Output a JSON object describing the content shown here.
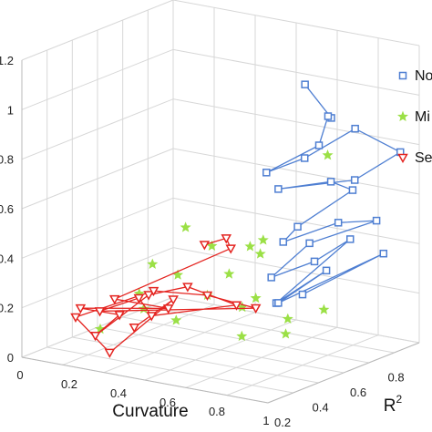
{
  "chart_data": {
    "type": "scatter",
    "view": "3d",
    "xlabel": "Curvature",
    "ylabel": "R",
    "ylabel_superscript": "2",
    "zlabel": "",
    "x_ticks": [
      "0",
      "0.2",
      "0.4",
      "0.6",
      "0.8",
      "1"
    ],
    "y_ticks": [
      "0.2",
      "0.4",
      "0.6",
      "0.8"
    ],
    "z_ticks": [
      "0",
      "0.2",
      "0.4",
      "0.6",
      "0.8",
      "1",
      "1.2"
    ],
    "xlim": [
      0,
      1
    ],
    "ylim": [
      0.2,
      1
    ],
    "zlim": [
      0,
      1.2
    ],
    "grid": true,
    "legend_position": "top-right",
    "series": [
      {
        "name": "No",
        "color": "#4f7fd2",
        "marker": "square",
        "x": [
          0.92,
          0.95,
          0.86,
          0.9,
          0.84,
          0.88,
          0.97,
          1.0,
          0.93,
          0.85,
          0.91,
          0.96,
          0.89,
          0.87,
          0.94,
          0.98,
          0.9,
          0.86,
          0.92,
          0.95,
          0.88,
          0.93,
          0.85,
          0.97,
          0.91
        ],
        "y": [
          0.5,
          0.6,
          0.7,
          0.6,
          0.4,
          0.55,
          0.7,
          0.9,
          0.75,
          0.45,
          0.65,
          0.7,
          0.5,
          0.45,
          0.65,
          0.8,
          0.55,
          0.4,
          0.55,
          0.7,
          0.4,
          0.6,
          0.45,
          0.85,
          0.5
        ],
        "z": [
          1.18,
          1.02,
          0.98,
          0.9,
          0.84,
          0.86,
          0.95,
          0.8,
          0.72,
          0.76,
          0.74,
          0.7,
          0.6,
          0.55,
          0.58,
          0.55,
          0.52,
          0.42,
          0.45,
          0.5,
          0.32,
          0.4,
          0.3,
          0.4,
          0.33
        ]
      },
      {
        "name": "Mi",
        "color": "#9be046",
        "marker": "star",
        "x": [
          0.82,
          0.55,
          0.62,
          0.75,
          0.7,
          0.58,
          0.3,
          0.48,
          0.78,
          0.65,
          0.4,
          0.92,
          0.85,
          0.38,
          0.6,
          0.72,
          0.55,
          0.28,
          0.88,
          0.74
        ],
        "y": [
          0.75,
          0.35,
          0.6,
          0.5,
          0.55,
          0.45,
          0.5,
          0.4,
          0.35,
          0.45,
          0.3,
          0.6,
          0.5,
          0.35,
          0.4,
          0.5,
          0.3,
          0.25,
          0.45,
          0.4
        ],
        "z": [
          0.8,
          0.58,
          0.44,
          0.52,
          0.44,
          0.48,
          0.34,
          0.36,
          0.3,
          0.38,
          0.3,
          0.24,
          0.22,
          0.22,
          0.3,
          0.28,
          0.22,
          0.15,
          0.18,
          0.16
        ]
      },
      {
        "name": "Sev",
        "color": "#e42420",
        "marker": "triangle-down",
        "x": [
          0.55,
          0.6,
          0.58,
          0.3,
          0.48,
          0.2,
          0.32,
          0.26,
          0.4,
          0.52,
          0.68,
          0.45,
          0.36,
          0.24,
          0.72,
          0.6,
          0.42,
          0.18,
          0.28,
          0.5,
          0.38
        ],
        "y": [
          0.45,
          0.5,
          0.55,
          0.3,
          0.35,
          0.25,
          0.3,
          0.25,
          0.35,
          0.4,
          0.45,
          0.3,
          0.35,
          0.3,
          0.5,
          0.4,
          0.35,
          0.25,
          0.3,
          0.35,
          0.3
        ],
        "z": [
          0.48,
          0.5,
          0.44,
          0.26,
          0.24,
          0.22,
          0.2,
          0.12,
          0.28,
          0.32,
          0.26,
          0.22,
          0.26,
          0.2,
          0.24,
          0.3,
          0.3,
          0.18,
          0.04,
          0.28,
          0.16
        ]
      }
    ]
  }
}
